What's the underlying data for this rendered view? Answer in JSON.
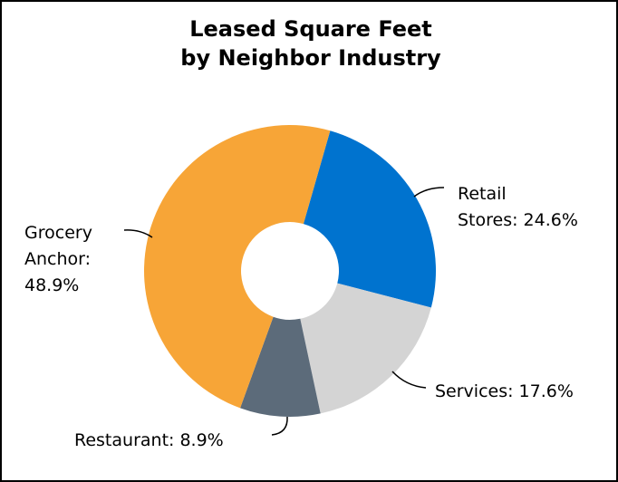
{
  "title_lines": [
    "Leased Square Feet",
    "by Neighbor Industry"
  ],
  "colors": {
    "grocery": "#f7a537",
    "retail": "#0073cf",
    "services": "#d4d4d4",
    "restaurant": "#5c6b7a",
    "border": "#000000",
    "leader": "#000000"
  },
  "chart_data": {
    "type": "pie",
    "donut": true,
    "title": "Leased Square Feet by Neighbor Industry",
    "slices": [
      {
        "name": "Retail Stores",
        "value": 24.6,
        "label_lines": [
          "Retail",
          "Stores: 24.6%"
        ],
        "color_key": "retail"
      },
      {
        "name": "Services",
        "value": 17.6,
        "label_lines": [
          "Services: 17.6%"
        ],
        "color_key": "services"
      },
      {
        "name": "Restaurant",
        "value": 8.9,
        "label_lines": [
          "Restaurant: 8.9%"
        ],
        "color_key": "restaurant"
      },
      {
        "name": "Grocery Anchor",
        "value": 48.9,
        "label_lines": [
          "Grocery",
          "Anchor:",
          "48.9%"
        ],
        "color_key": "grocery"
      }
    ]
  }
}
